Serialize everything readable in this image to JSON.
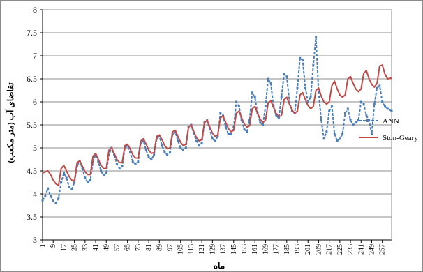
{
  "chart_data": {
    "type": "line",
    "xlabel": "ماه",
    "ylabel": "تقاضای آب (متر مکعب)",
    "x_range": [
      1,
      264
    ],
    "ylim": [
      3,
      8
    ],
    "y_ticks": [
      "3",
      "3.5",
      "4",
      "4.5",
      "5",
      "5.5",
      "6",
      "6.5",
      "7",
      "7.5",
      "8"
    ],
    "x_tick_labels": [
      "1",
      "9",
      "17",
      "25",
      "33",
      "41",
      "49",
      "57",
      "65",
      "73",
      "81",
      "89",
      "97",
      "105",
      "113",
      "121",
      "129",
      "137",
      "145",
      "153",
      "161",
      "169",
      "177",
      "185",
      "193",
      "201",
      "209",
      "217",
      "225",
      "233",
      "241",
      "249",
      "257"
    ],
    "grid": "horizontal",
    "legend_position": "right",
    "series": [
      {
        "name": "ANN",
        "color": "#4a7ebb",
        "style": "dashed-with-markers",
        "points": [
          [
            1,
            3.86
          ],
          [
            3,
            3.95
          ],
          [
            5,
            4.12
          ],
          [
            7,
            3.95
          ],
          [
            9,
            3.85
          ],
          [
            11,
            3.8
          ],
          [
            13,
            3.9
          ],
          [
            15,
            4.25
          ],
          [
            17,
            4.45
          ],
          [
            19,
            4.35
          ],
          [
            21,
            4.15
          ],
          [
            23,
            4.1
          ],
          [
            25,
            4.25
          ],
          [
            27,
            4.6
          ],
          [
            29,
            4.72
          ],
          [
            31,
            4.55
          ],
          [
            33,
            4.35
          ],
          [
            35,
            4.25
          ],
          [
            37,
            4.3
          ],
          [
            39,
            4.7
          ],
          [
            41,
            4.85
          ],
          [
            43,
            4.7
          ],
          [
            45,
            4.5
          ],
          [
            47,
            4.4
          ],
          [
            49,
            4.45
          ],
          [
            51,
            4.85
          ],
          [
            53,
            5.0
          ],
          [
            55,
            4.85
          ],
          [
            57,
            4.65
          ],
          [
            59,
            4.55
          ],
          [
            61,
            4.6
          ],
          [
            63,
            5.0
          ],
          [
            65,
            5.05
          ],
          [
            67,
            4.9
          ],
          [
            69,
            4.7
          ],
          [
            71,
            4.65
          ],
          [
            73,
            4.7
          ],
          [
            75,
            5.1
          ],
          [
            77,
            5.15
          ],
          [
            79,
            4.95
          ],
          [
            81,
            4.8
          ],
          [
            83,
            4.75
          ],
          [
            85,
            4.85
          ],
          [
            87,
            5.2
          ],
          [
            89,
            5.25
          ],
          [
            91,
            5.05
          ],
          [
            93,
            4.9
          ],
          [
            95,
            4.85
          ],
          [
            97,
            4.9
          ],
          [
            99,
            5.3
          ],
          [
            101,
            5.35
          ],
          [
            103,
            5.15
          ],
          [
            105,
            5.0
          ],
          [
            107,
            4.95
          ],
          [
            109,
            5.0
          ],
          [
            111,
            5.45
          ],
          [
            113,
            5.5
          ],
          [
            115,
            5.3
          ],
          [
            117,
            5.15
          ],
          [
            119,
            5.05
          ],
          [
            121,
            5.1
          ],
          [
            123,
            5.55
          ],
          [
            125,
            5.6
          ],
          [
            127,
            5.4
          ],
          [
            129,
            5.2
          ],
          [
            131,
            5.15
          ],
          [
            133,
            5.25
          ],
          [
            135,
            5.75
          ],
          [
            137,
            5.7
          ],
          [
            139,
            5.45
          ],
          [
            141,
            5.3
          ],
          [
            143,
            5.3
          ],
          [
            145,
            5.45
          ],
          [
            147,
            6.0
          ],
          [
            149,
            5.9
          ],
          [
            151,
            5.6
          ],
          [
            153,
            5.4
          ],
          [
            155,
            5.35
          ],
          [
            157,
            5.6
          ],
          [
            159,
            6.2
          ],
          [
            161,
            6.1
          ],
          [
            163,
            5.75
          ],
          [
            165,
            5.55
          ],
          [
            167,
            5.5
          ],
          [
            169,
            5.9
          ],
          [
            171,
            6.5
          ],
          [
            173,
            6.4
          ],
          [
            175,
            5.9
          ],
          [
            177,
            5.7
          ],
          [
            179,
            5.65
          ],
          [
            181,
            6.1
          ],
          [
            183,
            6.6
          ],
          [
            185,
            6.55
          ],
          [
            187,
            6.0
          ],
          [
            189,
            5.8
          ],
          [
            191,
            5.75
          ],
          [
            193,
            6.3
          ],
          [
            195,
            6.95
          ],
          [
            197,
            6.9
          ],
          [
            199,
            6.3
          ],
          [
            201,
            6.0
          ],
          [
            203,
            6.1
          ],
          [
            205,
            6.8
          ],
          [
            207,
            7.4
          ],
          [
            209,
            6.2
          ],
          [
            211,
            5.6
          ],
          [
            213,
            5.2
          ],
          [
            215,
            5.35
          ],
          [
            217,
            5.8
          ],
          [
            219,
            5.9
          ],
          [
            221,
            5.3
          ],
          [
            223,
            5.15
          ],
          [
            225,
            5.2
          ],
          [
            227,
            5.3
          ],
          [
            229,
            5.75
          ],
          [
            231,
            5.85
          ],
          [
            233,
            5.6
          ],
          [
            235,
            5.5
          ],
          [
            237,
            5.55
          ],
          [
            239,
            5.6
          ],
          [
            241,
            6.0
          ],
          [
            243,
            5.95
          ],
          [
            245,
            5.7
          ],
          [
            247,
            5.6
          ],
          [
            249,
            5.3
          ],
          [
            251,
            5.95
          ],
          [
            253,
            6.3
          ],
          [
            255,
            6.35
          ],
          [
            257,
            6.0
          ],
          [
            259,
            5.9
          ],
          [
            261,
            5.85
          ],
          [
            264,
            5.8
          ]
        ]
      },
      {
        "name": "Ston-Geary",
        "color": "#be4b48",
        "style": "solid",
        "points": [
          [
            1,
            4.45
          ],
          [
            3,
            4.48
          ],
          [
            5,
            4.5
          ],
          [
            7,
            4.42
          ],
          [
            9,
            4.3
          ],
          [
            11,
            4.22
          ],
          [
            13,
            4.18
          ],
          [
            15,
            4.55
          ],
          [
            17,
            4.62
          ],
          [
            19,
            4.5
          ],
          [
            21,
            4.38
          ],
          [
            23,
            4.3
          ],
          [
            25,
            4.28
          ],
          [
            27,
            4.68
          ],
          [
            29,
            4.72
          ],
          [
            31,
            4.6
          ],
          [
            33,
            4.48
          ],
          [
            35,
            4.42
          ],
          [
            37,
            4.42
          ],
          [
            39,
            4.82
          ],
          [
            41,
            4.88
          ],
          [
            43,
            4.75
          ],
          [
            45,
            4.62
          ],
          [
            47,
            4.55
          ],
          [
            49,
            4.55
          ],
          [
            51,
            4.95
          ],
          [
            53,
            5.0
          ],
          [
            55,
            4.88
          ],
          [
            57,
            4.75
          ],
          [
            59,
            4.68
          ],
          [
            61,
            4.68
          ],
          [
            63,
            5.05
          ],
          [
            65,
            5.08
          ],
          [
            67,
            4.98
          ],
          [
            69,
            4.85
          ],
          [
            71,
            4.78
          ],
          [
            73,
            4.78
          ],
          [
            75,
            5.15
          ],
          [
            77,
            5.2
          ],
          [
            79,
            5.08
          ],
          [
            81,
            4.95
          ],
          [
            83,
            4.88
          ],
          [
            85,
            4.9
          ],
          [
            87,
            5.25
          ],
          [
            89,
            5.28
          ],
          [
            91,
            5.18
          ],
          [
            93,
            5.05
          ],
          [
            95,
            4.98
          ],
          [
            97,
            5.0
          ],
          [
            99,
            5.35
          ],
          [
            101,
            5.38
          ],
          [
            103,
            5.25
          ],
          [
            105,
            5.12
          ],
          [
            107,
            5.05
          ],
          [
            109,
            5.08
          ],
          [
            111,
            5.45
          ],
          [
            113,
            5.5
          ],
          [
            115,
            5.35
          ],
          [
            117,
            5.22
          ],
          [
            119,
            5.15
          ],
          [
            121,
            5.18
          ],
          [
            123,
            5.55
          ],
          [
            125,
            5.6
          ],
          [
            127,
            5.45
          ],
          [
            129,
            5.32
          ],
          [
            131,
            5.25
          ],
          [
            133,
            5.28
          ],
          [
            135,
            5.65
          ],
          [
            137,
            5.7
          ],
          [
            139,
            5.55
          ],
          [
            141,
            5.42
          ],
          [
            143,
            5.35
          ],
          [
            145,
            5.38
          ],
          [
            147,
            5.75
          ],
          [
            149,
            5.8
          ],
          [
            151,
            5.65
          ],
          [
            153,
            5.52
          ],
          [
            155,
            5.45
          ],
          [
            157,
            5.48
          ],
          [
            159,
            5.85
          ],
          [
            161,
            5.9
          ],
          [
            163,
            5.75
          ],
          [
            165,
            5.62
          ],
          [
            167,
            5.55
          ],
          [
            169,
            5.6
          ],
          [
            171,
            5.98
          ],
          [
            173,
            6.02
          ],
          [
            175,
            5.88
          ],
          [
            177,
            5.75
          ],
          [
            179,
            5.68
          ],
          [
            181,
            5.7
          ],
          [
            183,
            6.05
          ],
          [
            185,
            6.1
          ],
          [
            187,
            5.95
          ],
          [
            189,
            5.82
          ],
          [
            191,
            5.75
          ],
          [
            193,
            5.8
          ],
          [
            195,
            6.15
          ],
          [
            197,
            6.2
          ],
          [
            199,
            6.05
          ],
          [
            201,
            5.92
          ],
          [
            203,
            5.85
          ],
          [
            205,
            5.9
          ],
          [
            207,
            6.25
          ],
          [
            209,
            6.3
          ],
          [
            211,
            6.12
          ],
          [
            213,
            6.0
          ],
          [
            215,
            5.95
          ],
          [
            217,
            6.0
          ],
          [
            219,
            6.35
          ],
          [
            221,
            6.45
          ],
          [
            223,
            6.28
          ],
          [
            225,
            6.15
          ],
          [
            227,
            6.1
          ],
          [
            229,
            6.15
          ],
          [
            231,
            6.5
          ],
          [
            233,
            6.55
          ],
          [
            235,
            6.4
          ],
          [
            237,
            6.28
          ],
          [
            239,
            6.22
          ],
          [
            241,
            6.28
          ],
          [
            243,
            6.62
          ],
          [
            245,
            6.68
          ],
          [
            247,
            6.5
          ],
          [
            249,
            6.38
          ],
          [
            251,
            6.32
          ],
          [
            253,
            6.4
          ],
          [
            255,
            6.78
          ],
          [
            257,
            6.8
          ],
          [
            259,
            6.6
          ],
          [
            261,
            6.5
          ],
          [
            264,
            6.52
          ]
        ]
      }
    ]
  }
}
